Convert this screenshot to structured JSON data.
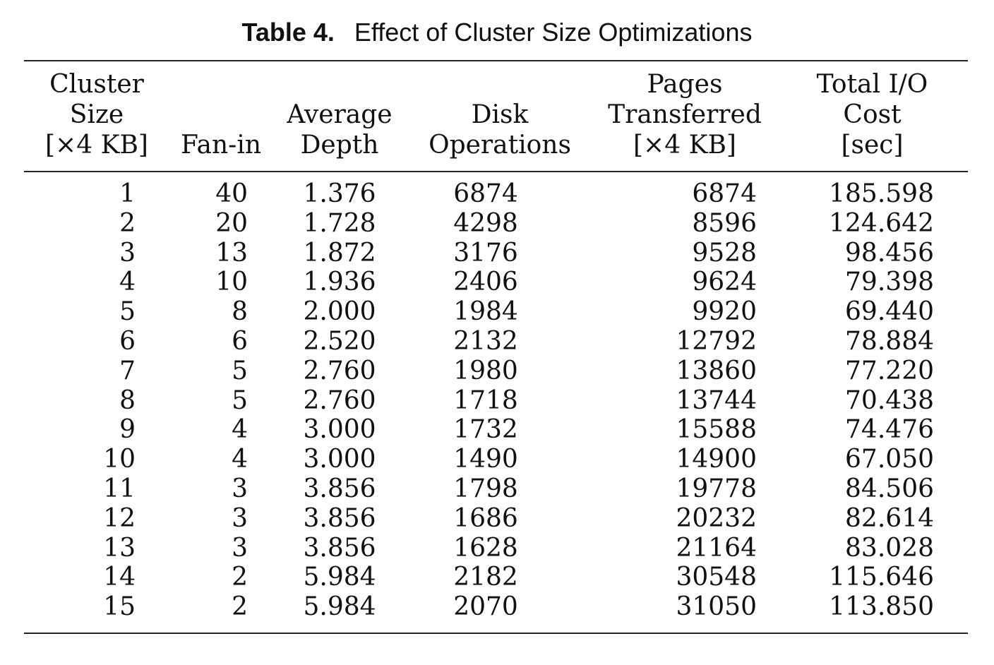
{
  "caption": {
    "label": "Table 4.",
    "title": "Effect of Cluster Size Optimizations"
  },
  "table": {
    "headers": [
      {
        "lines": [
          "Cluster",
          "Size",
          "[×4 KB]"
        ]
      },
      {
        "lines": [
          "",
          "",
          "Fan-in"
        ]
      },
      {
        "lines": [
          "",
          "Average",
          "Depth"
        ]
      },
      {
        "lines": [
          "",
          "Disk",
          "Operations"
        ]
      },
      {
        "lines": [
          "Pages",
          "Transferred",
          "[×4 KB]"
        ]
      },
      {
        "lines": [
          "Total I/O",
          "Cost",
          "[sec]"
        ]
      }
    ],
    "rows": [
      [
        "1",
        "40",
        "1.376",
        "6874",
        "6874",
        "185.598"
      ],
      [
        "2",
        "20",
        "1.728",
        "4298",
        "8596",
        "124.642"
      ],
      [
        "3",
        "13",
        "1.872",
        "3176",
        "9528",
        "98.456"
      ],
      [
        "4",
        "10",
        "1.936",
        "2406",
        "9624",
        "79.398"
      ],
      [
        "5",
        "8",
        "2.000",
        "1984",
        "9920",
        "69.440"
      ],
      [
        "6",
        "6",
        "2.520",
        "2132",
        "12792",
        "78.884"
      ],
      [
        "7",
        "5",
        "2.760",
        "1980",
        "13860",
        "77.220"
      ],
      [
        "8",
        "5",
        "2.760",
        "1718",
        "13744",
        "70.438"
      ],
      [
        "9",
        "4",
        "3.000",
        "1732",
        "15588",
        "74.476"
      ],
      [
        "10",
        "4",
        "3.000",
        "1490",
        "14900",
        "67.050"
      ],
      [
        "11",
        "3",
        "3.856",
        "1798",
        "19778",
        "84.506"
      ],
      [
        "12",
        "3",
        "3.856",
        "1686",
        "20232",
        "82.614"
      ],
      [
        "13",
        "3",
        "3.856",
        "1628",
        "21164",
        "83.028"
      ],
      [
        "14",
        "2",
        "5.984",
        "2182",
        "30548",
        "115.646"
      ],
      [
        "15",
        "2",
        "5.984",
        "2070",
        "31050",
        "113.850"
      ]
    ]
  }
}
